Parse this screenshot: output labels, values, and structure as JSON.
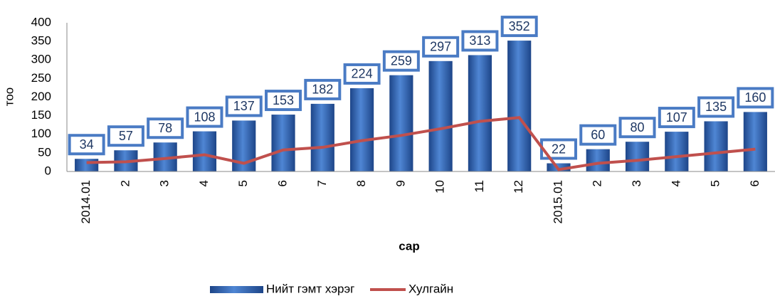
{
  "chart_data": {
    "type": "bar",
    "categories": [
      "2014.01",
      "2",
      "3",
      "4",
      "5",
      "6",
      "7",
      "8",
      "9",
      "10",
      "11",
      "12",
      "2015.01",
      "2",
      "3",
      "4",
      "5",
      "6"
    ],
    "series": [
      {
        "name": "Нийт гэмт хэрэг",
        "type": "bar",
        "color": "#2f5fa8",
        "values": [
          34,
          57,
          78,
          108,
          137,
          153,
          182,
          224,
          259,
          297,
          313,
          352,
          22,
          60,
          80,
          107,
          135,
          160
        ]
      },
      {
        "name": "Хулгайн",
        "type": "line",
        "color": "#c0504d",
        "values": [
          24,
          26,
          35,
          45,
          22,
          58,
          65,
          83,
          97,
          115,
          135,
          145,
          5,
          22,
          30,
          40,
          50,
          60
        ]
      }
    ],
    "ylim": [
      0,
      400
    ],
    "yticks": [
      0,
      50,
      100,
      150,
      200,
      250,
      300,
      350,
      400
    ],
    "y_label": "тоо",
    "x_label": "сар",
    "legend": "bottom"
  }
}
